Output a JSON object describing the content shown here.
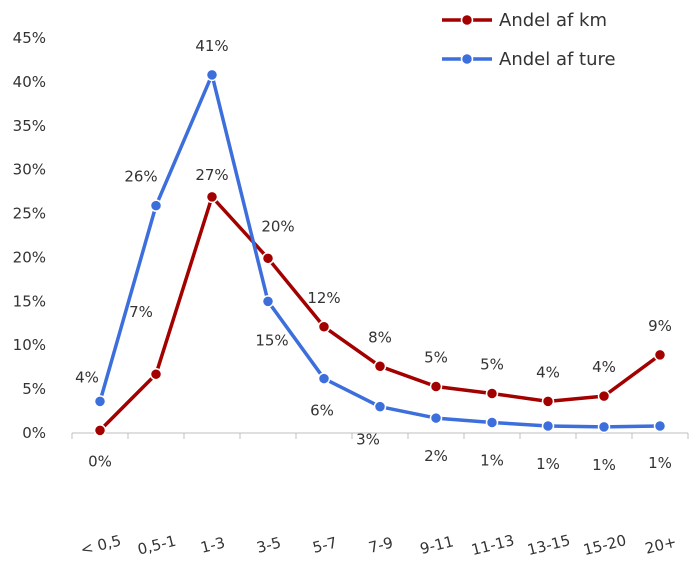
{
  "chart_data": {
    "type": "line",
    "title": "",
    "xlabel": "",
    "ylabel": "",
    "ylim": [
      0,
      45
    ],
    "yticks": [
      "0%",
      "5%",
      "10%",
      "15%",
      "20%",
      "25%",
      "30%",
      "35%",
      "40%",
      "45%"
    ],
    "grid": false,
    "legend_position": "top-right",
    "categories": [
      "< 0,5",
      "0,5-1",
      "1-3",
      "3-5",
      "5-7",
      "7-9",
      "9-11",
      "11-13",
      "13-15",
      "15-20",
      "20+"
    ],
    "series": [
      {
        "name": "Andel af km",
        "color": "#a30000",
        "values": [
          0.3,
          6.7,
          26.9,
          19.9,
          12.1,
          7.6,
          5.3,
          4.5,
          3.6,
          4.2,
          8.9
        ],
        "labels": [
          "0%",
          "7%",
          "27%",
          "20%",
          "12%",
          "8%",
          "5%",
          "5%",
          "4%",
          "4%",
          "9%"
        ]
      },
      {
        "name": "Andel af ture",
        "color": "#3d6fdc",
        "values": [
          3.6,
          25.9,
          40.8,
          15.0,
          6.2,
          3.0,
          1.7,
          1.2,
          0.8,
          0.7,
          0.8
        ],
        "labels": [
          "4%",
          "26%",
          "41%",
          "15%",
          "6%",
          "3%",
          "2%",
          "1%",
          "1%",
          "1%",
          "1%"
        ]
      }
    ]
  }
}
